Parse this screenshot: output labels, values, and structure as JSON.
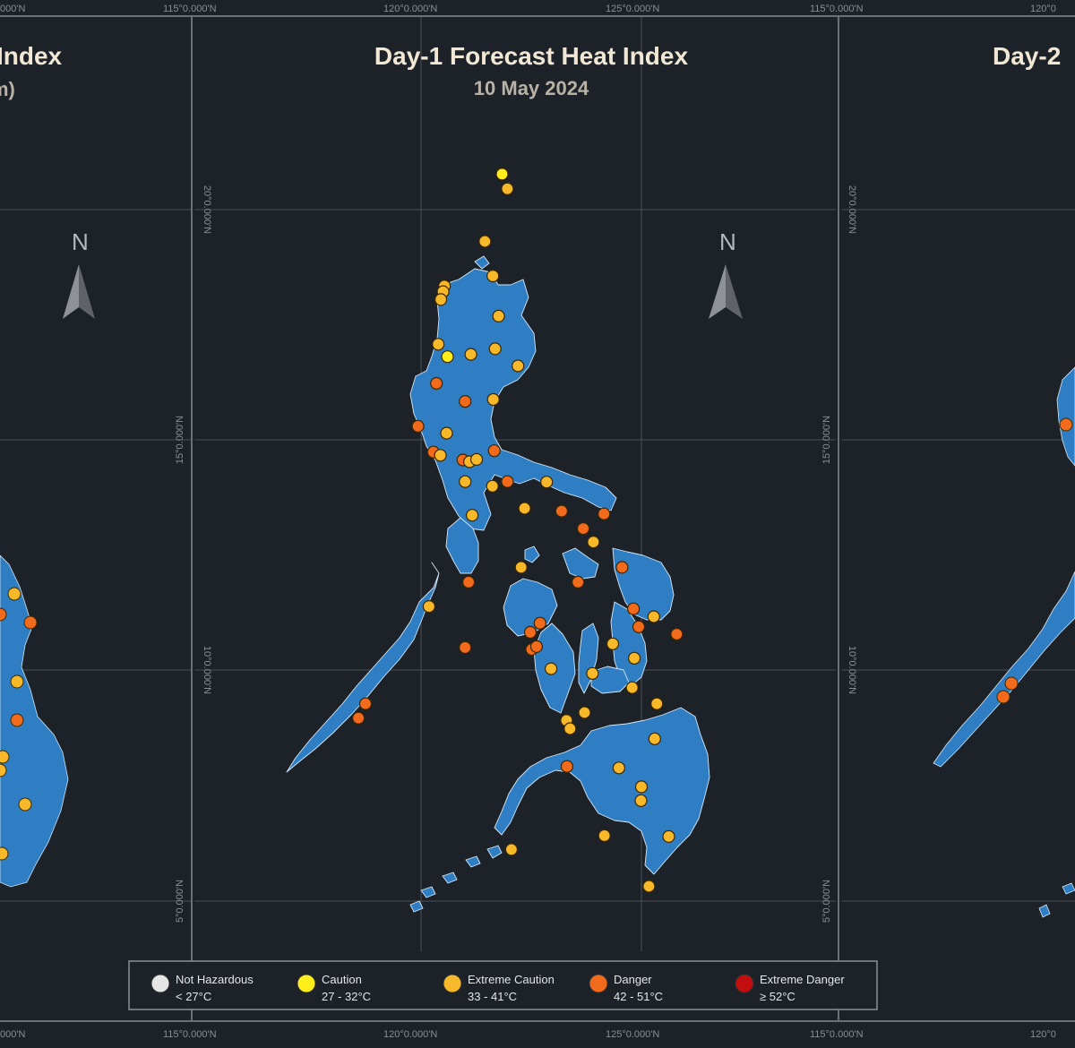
{
  "panels": {
    "left": {
      "title": "Index",
      "subtitle": "m)"
    },
    "center": {
      "title": "Day-1 Forecast Heat Index",
      "subtitle": "10 May 2024"
    },
    "right": {
      "title": "Day-2"
    }
  },
  "north_label": "N",
  "coords": {
    "top": [
      "000'N",
      "115°0.000'N",
      "120°0.000'N",
      "125°0.000'N",
      "115°0.000'N",
      "120°0"
    ],
    "bottom": [
      "000'N",
      "115°0.000'N",
      "120°0.000'N",
      "125°0.000'N",
      "115°0.000'N",
      "120°0"
    ],
    "center_lat": [
      "20°0.000'N",
      "15°0.000'N",
      "10°0.000'N",
      "5°0.000'N"
    ],
    "right_lat": [
      "20°0.000'N",
      "15°0.000'N",
      "10°0.000'N",
      "5°0.000'N"
    ]
  },
  "legend": [
    {
      "name": "Not Hazardous",
      "range": "< 27°C",
      "color": "#e6e6e6"
    },
    {
      "name": "Caution",
      "range": "27 - 32°C",
      "color": "#ffee1a"
    },
    {
      "name": "Extreme Caution",
      "range": "33 - 41°C",
      "color": "#f7b82a"
    },
    {
      "name": "Danger",
      "range": "42 - 51°C",
      "color": "#f26a1b"
    },
    {
      "name": "Extreme Danger",
      "range": "≥ 52°C",
      "color": "#c20e0e"
    }
  ],
  "colors": {
    "land": "#2f7ec4",
    "background": "#1c2227",
    "grid": "#4a5056"
  },
  "stations": [
    {
      "lon": 121.84,
      "lat": 20.77,
      "level": "Caution"
    },
    {
      "lon": 121.96,
      "lat": 20.45,
      "level": "Extreme Caution"
    },
    {
      "lon": 121.45,
      "lat": 19.31,
      "level": "Extreme Caution"
    },
    {
      "lon": 120.53,
      "lat": 18.34,
      "level": "Extreme Caution"
    },
    {
      "lon": 120.5,
      "lat": 18.22,
      "level": "Extreme Caution"
    },
    {
      "lon": 120.45,
      "lat": 18.05,
      "level": "Extreme Caution"
    },
    {
      "lon": 121.63,
      "lat": 18.56,
      "level": "Extreme Caution"
    },
    {
      "lon": 121.76,
      "lat": 17.69,
      "level": "Extreme Caution"
    },
    {
      "lon": 120.39,
      "lat": 17.08,
      "level": "Extreme Caution"
    },
    {
      "lon": 120.6,
      "lat": 16.81,
      "level": "Caution"
    },
    {
      "lon": 121.13,
      "lat": 16.86,
      "level": "Extreme Caution"
    },
    {
      "lon": 121.68,
      "lat": 16.98,
      "level": "Extreme Caution"
    },
    {
      "lon": 122.2,
      "lat": 16.61,
      "level": "Extreme Caution"
    },
    {
      "lon": 120.35,
      "lat": 16.23,
      "level": "Danger"
    },
    {
      "lon": 121.0,
      "lat": 15.84,
      "level": "Danger"
    },
    {
      "lon": 121.64,
      "lat": 15.88,
      "level": "Extreme Caution"
    },
    {
      "lon": 119.93,
      "lat": 15.3,
      "level": "Danger"
    },
    {
      "lon": 120.58,
      "lat": 15.15,
      "level": "Extreme Caution"
    },
    {
      "lon": 120.28,
      "lat": 14.74,
      "level": "Danger"
    },
    {
      "lon": 120.44,
      "lat": 14.67,
      "level": "Extreme Caution"
    },
    {
      "lon": 120.95,
      "lat": 14.57,
      "level": "Danger"
    },
    {
      "lon": 121.1,
      "lat": 14.53,
      "level": "Extreme Caution"
    },
    {
      "lon": 121.26,
      "lat": 14.58,
      "level": "Extreme Caution"
    },
    {
      "lon": 121.66,
      "lat": 14.77,
      "level": "Danger"
    },
    {
      "lon": 121.0,
      "lat": 14.1,
      "level": "Extreme Caution"
    },
    {
      "lon": 121.62,
      "lat": 14.0,
      "level": "Extreme Caution"
    },
    {
      "lon": 121.96,
      "lat": 14.1,
      "level": "Danger"
    },
    {
      "lon": 122.85,
      "lat": 14.09,
      "level": "Extreme Caution"
    },
    {
      "lon": 121.16,
      "lat": 13.37,
      "level": "Extreme Caution"
    },
    {
      "lon": 122.35,
      "lat": 13.52,
      "level": "Extreme Caution"
    },
    {
      "lon": 123.19,
      "lat": 13.46,
      "level": "Danger"
    },
    {
      "lon": 123.68,
      "lat": 13.08,
      "level": "Danger"
    },
    {
      "lon": 123.91,
      "lat": 12.79,
      "level": "Extreme Caution"
    },
    {
      "lon": 124.15,
      "lat": 13.4,
      "level": "Danger"
    },
    {
      "lon": 122.27,
      "lat": 12.24,
      "level": "Extreme Caution"
    },
    {
      "lon": 121.08,
      "lat": 11.92,
      "level": "Danger"
    },
    {
      "lon": 123.56,
      "lat": 11.92,
      "level": "Danger"
    },
    {
      "lon": 124.56,
      "lat": 12.24,
      "level": "Danger"
    },
    {
      "lon": 120.18,
      "lat": 11.39,
      "level": "Extreme Caution"
    },
    {
      "lon": 124.82,
      "lat": 11.34,
      "level": "Danger"
    },
    {
      "lon": 125.28,
      "lat": 11.17,
      "level": "Extreme Caution"
    },
    {
      "lon": 122.7,
      "lat": 11.03,
      "level": "Danger"
    },
    {
      "lon": 122.48,
      "lat": 10.83,
      "level": "Danger"
    },
    {
      "lon": 124.35,
      "lat": 10.58,
      "level": "Extreme Caution"
    },
    {
      "lon": 124.94,
      "lat": 10.95,
      "level": "Danger"
    },
    {
      "lon": 125.8,
      "lat": 10.79,
      "level": "Danger"
    },
    {
      "lon": 121.0,
      "lat": 10.5,
      "level": "Danger"
    },
    {
      "lon": 122.51,
      "lat": 10.46,
      "level": "Danger"
    },
    {
      "lon": 122.62,
      "lat": 10.52,
      "level": "Danger"
    },
    {
      "lon": 124.84,
      "lat": 10.27,
      "level": "Extreme Caution"
    },
    {
      "lon": 122.95,
      "lat": 10.04,
      "level": "Extreme Caution"
    },
    {
      "lon": 123.89,
      "lat": 9.94,
      "level": "Extreme Caution"
    },
    {
      "lon": 124.79,
      "lat": 9.63,
      "level": "Extreme Caution"
    },
    {
      "lon": 123.71,
      "lat": 9.09,
      "level": "Extreme Caution"
    },
    {
      "lon": 125.35,
      "lat": 9.28,
      "level": "Extreme Caution"
    },
    {
      "lon": 118.74,
      "lat": 9.28,
      "level": "Danger"
    },
    {
      "lon": 118.58,
      "lat": 8.97,
      "level": "Danger"
    },
    {
      "lon": 123.3,
      "lat": 8.92,
      "level": "Extreme Caution"
    },
    {
      "lon": 123.38,
      "lat": 8.74,
      "level": "Extreme Caution"
    },
    {
      "lon": 125.3,
      "lat": 8.52,
      "level": "Extreme Caution"
    },
    {
      "lon": 123.31,
      "lat": 7.92,
      "level": "Danger"
    },
    {
      "lon": 124.49,
      "lat": 7.89,
      "level": "Extreme Caution"
    },
    {
      "lon": 125.0,
      "lat": 7.48,
      "level": "Extreme Caution"
    },
    {
      "lon": 124.99,
      "lat": 7.18,
      "level": "Extreme Caution"
    },
    {
      "lon": 124.16,
      "lat": 6.42,
      "level": "Extreme Caution"
    },
    {
      "lon": 125.62,
      "lat": 6.4,
      "level": "Extreme Caution"
    },
    {
      "lon": 122.05,
      "lat": 6.12,
      "level": "Extreme Caution"
    },
    {
      "lon": 125.17,
      "lat": 5.32,
      "level": "Extreme Caution"
    }
  ]
}
